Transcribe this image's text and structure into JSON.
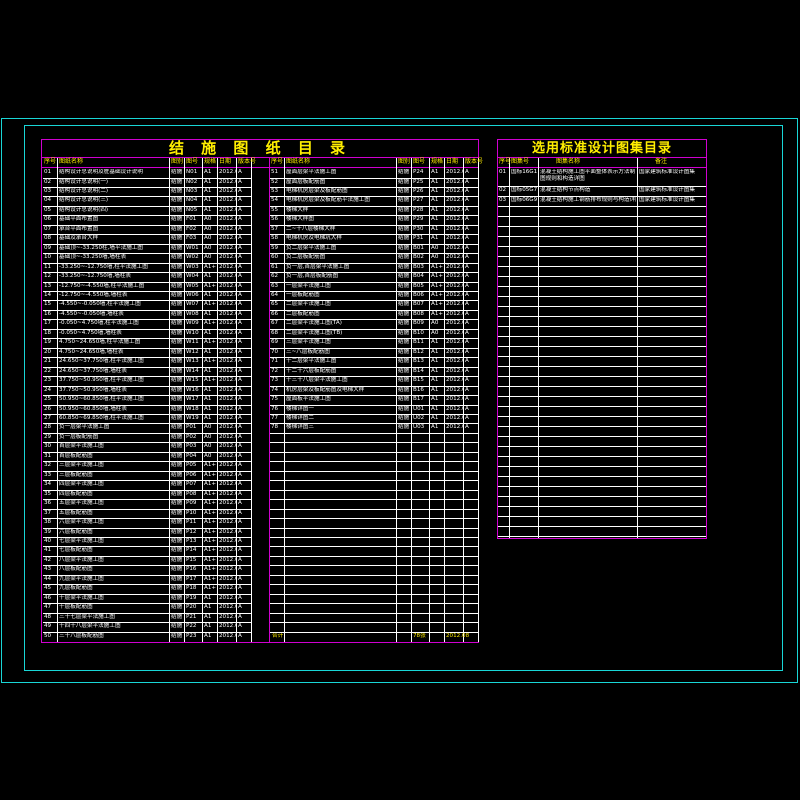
{
  "left_table": {
    "title": "结 施 图 纸 目 录",
    "headers": [
      "序号",
      "图纸名称",
      "图别",
      "图号",
      "规格",
      "日期",
      "版本号"
    ],
    "col2_headers": [
      "序号",
      "图纸名称",
      "图别",
      "图号",
      "规格",
      "日期",
      "版本号"
    ],
    "rows_a": [
      [
        "01",
        "结构设计总说明及桩基础设计说明",
        "结施",
        "N01",
        "A1",
        "2012.08",
        "A"
      ],
      [
        "02",
        "结构设计总说明(一)",
        "结施",
        "N02",
        "A1",
        "2012.08",
        "A"
      ],
      [
        "03",
        "结构设计总说明(二)",
        "结施",
        "N03",
        "A1",
        "2012.08",
        "A"
      ],
      [
        "04",
        "结构设计总说明(三)",
        "结施",
        "N04",
        "A1",
        "2012.08",
        "A"
      ],
      [
        "05",
        "结构设计总说明(四)",
        "结施",
        "N05",
        "A1",
        "2012.08",
        "A"
      ],
      [
        "06",
        "基础平面布置图",
        "结施",
        "F01",
        "A0",
        "2012.08",
        "A"
      ],
      [
        "07",
        "承台平面布置图",
        "结施",
        "F02",
        "A0",
        "2012.08",
        "A"
      ],
      [
        "08",
        "基础及承台大样",
        "结施",
        "F03",
        "A0",
        "2012.08",
        "A"
      ],
      [
        "09",
        "基础顶~-33.250柱,墙平法施工图",
        "结施",
        "W01",
        "A0",
        "2012.08",
        "A"
      ],
      [
        "10",
        "基础顶~-33.250墙,墙柱表",
        "结施",
        "W02",
        "A0",
        "2012.08",
        "A"
      ],
      [
        "11",
        "-33.250~-12.750墙,柱平法施工图",
        "结施",
        "W03",
        "A1+",
        "2012.08",
        "A"
      ],
      [
        "12",
        "-33.250~-12.750墙,墙柱表",
        "结施",
        "W04",
        "A1",
        "2012.08",
        "A"
      ],
      [
        "13",
        "-12.750~-4.550墙,柱平法施工图",
        "结施",
        "W05",
        "A1+",
        "2012.08",
        "A"
      ],
      [
        "14",
        "-12.750~-4.550墙,墙柱表",
        "结施",
        "W06",
        "A1",
        "2012.08",
        "A"
      ],
      [
        "15",
        "-4.550~-0.050墙,柱平法施工图",
        "结施",
        "W07",
        "A1+",
        "2012.08",
        "A"
      ],
      [
        "16",
        "-4.550~-0.050墙,墙柱表",
        "结施",
        "W08",
        "A1",
        "2012.08",
        "A"
      ],
      [
        "17",
        "-0.050~4.750墙,柱平法施工图",
        "结施",
        "W09",
        "A1+",
        "2012.08",
        "A"
      ],
      [
        "18",
        "-0.050~4.750墙,墙柱表",
        "结施",
        "W10",
        "A1",
        "2012.08",
        "A"
      ],
      [
        "19",
        "4.750~24.650墙,柱平法施工图",
        "结施",
        "W11",
        "A1+",
        "2012.08",
        "A"
      ],
      [
        "20",
        "4.750~24.650墙,墙柱表",
        "结施",
        "W12",
        "A1",
        "2012.08",
        "A"
      ],
      [
        "21",
        "24.650~37.750墙,柱平法施工图",
        "结施",
        "W13",
        "A1+",
        "2012.08",
        "A"
      ],
      [
        "22",
        "24.650~37.750墙,墙柱表",
        "结施",
        "W14",
        "A1",
        "2012.08",
        "A"
      ],
      [
        "23",
        "37.750~50.950墙,柱平法施工图",
        "结施",
        "W15",
        "A1+",
        "2012.08",
        "A"
      ],
      [
        "24",
        "37.750~50.950墙,墙柱表",
        "结施",
        "W16",
        "A1",
        "2012.08",
        "A"
      ],
      [
        "25",
        "50.950~60.850墙,柱平法施工图",
        "结施",
        "W17",
        "A1",
        "2012.08",
        "A"
      ],
      [
        "26",
        "50.950~60.850墙,墙柱表",
        "结施",
        "W18",
        "A1",
        "2012.08",
        "A"
      ],
      [
        "27",
        "60.850~69.850墙,柱平法施工图",
        "结施",
        "W19",
        "A1",
        "2012.08",
        "A"
      ],
      [
        "28",
        "负一层梁平法施工图",
        "结施",
        "P01",
        "A0",
        "2012.08",
        "A"
      ],
      [
        "29",
        "负一层板配筋图",
        "结施",
        "P02",
        "A0",
        "2012.08",
        "A"
      ],
      [
        "30",
        "首层梁平法施工图",
        "结施",
        "P03",
        "A0",
        "2012.08",
        "A"
      ],
      [
        "31",
        "首层板配筋图",
        "结施",
        "P04",
        "A0",
        "2012.08",
        "A"
      ],
      [
        "32",
        "三层梁平法施工图",
        "结施",
        "P05",
        "A1+",
        "2012.08",
        "A"
      ],
      [
        "33",
        "三层板配筋图",
        "结施",
        "P06",
        "A1+",
        "2012.08",
        "A"
      ],
      [
        "34",
        "四层梁平法施工图",
        "结施",
        "P07",
        "A1+",
        "2012.08",
        "A"
      ],
      [
        "35",
        "四层板配筋图",
        "结施",
        "P08",
        "A1+",
        "2012.08",
        "A"
      ],
      [
        "36",
        "五层梁平法施工图",
        "结施",
        "P09",
        "A1+",
        "2012.08",
        "A"
      ],
      [
        "37",
        "五层板配筋图",
        "结施",
        "P10",
        "A1+",
        "2012.08",
        "A"
      ],
      [
        "38",
        "六层梁平法施工图",
        "结施",
        "P11",
        "A1+",
        "2012.08",
        "A"
      ],
      [
        "39",
        "六层板配筋图",
        "结施",
        "P12",
        "A1+",
        "2012.08",
        "A"
      ],
      [
        "40",
        "七层梁平法施工图",
        "结施",
        "P13",
        "A1+",
        "2012.08",
        "A"
      ],
      [
        "41",
        "七层板配筋图",
        "结施",
        "P14",
        "A1+",
        "2012.08",
        "A"
      ],
      [
        "42",
        "八层梁平法施工图",
        "结施",
        "P15",
        "A1+",
        "2012.08",
        "A"
      ],
      [
        "43",
        "八层板配筋图",
        "结施",
        "P16",
        "A1+",
        "2012.08",
        "A"
      ],
      [
        "44",
        "九层梁平法施工图",
        "结施",
        "P17",
        "A1+",
        "2012.08",
        "A"
      ],
      [
        "45",
        "九层板配筋图",
        "结施",
        "P18",
        "A1+",
        "2012.08",
        "A"
      ],
      [
        "46",
        "十层梁平法施工图",
        "结施",
        "P19",
        "A1",
        "2012.08",
        "A"
      ],
      [
        "47",
        "十层板配筋图",
        "结施",
        "P20",
        "A1",
        "2012.08",
        "A"
      ],
      [
        "48",
        "三十七层梁平法施工图",
        "结施",
        "P21",
        "A1",
        "2012.08",
        "A"
      ],
      [
        "49",
        "十四十八层梁平法施工图",
        "结施",
        "P22",
        "A1",
        "2012.08",
        "A"
      ],
      [
        "50",
        "三十八层板配筋图",
        "结施",
        "P23",
        "A1",
        "2012.08",
        "A"
      ]
    ],
    "rows_b": [
      [
        "51",
        "屋面层梁平法施工图",
        "结施",
        "P24",
        "A1",
        "2012.08",
        "A"
      ],
      [
        "52",
        "屋面层板配筋图",
        "结施",
        "P25",
        "A1",
        "2012.08",
        "A"
      ],
      [
        "53",
        "电梯机房层梁及板配筋图",
        "结施",
        "P26",
        "A1",
        "2012.08",
        "A"
      ],
      [
        "54",
        "电梯机房层梁及板配筋平法施工图",
        "结施",
        "P27",
        "A1",
        "2012.08",
        "A"
      ],
      [
        "55",
        "楼梯大样",
        "结施",
        "P28",
        "A1",
        "2012.08",
        "A"
      ],
      [
        "56",
        "楼梯大样图",
        "结施",
        "P29",
        "A1",
        "2012.08",
        "A"
      ],
      [
        "57",
        "二~十八层楼梯大样",
        "结施",
        "P30",
        "A1",
        "2012.08",
        "A"
      ],
      [
        "58",
        "电梯机房及电梯坑大样",
        "结施",
        "P31",
        "A1",
        "2012.08",
        "A"
      ],
      [
        "59",
        "负二层梁平法施工图",
        "结施",
        "B01",
        "A0",
        "2012.08",
        "A"
      ],
      [
        "60",
        "负二层板配筋图",
        "结施",
        "B02",
        "A0",
        "2012.08",
        "A"
      ],
      [
        "61",
        "负一层,首层梁平法施工图",
        "结施",
        "B03",
        "A1+",
        "2012.08",
        "A"
      ],
      [
        "62",
        "负一层,首层板配筋图",
        "结施",
        "B04",
        "A1+",
        "2012.08",
        "A"
      ],
      [
        "63",
        "一层梁平法施工图",
        "结施",
        "B05",
        "A1+",
        "2012.08",
        "A"
      ],
      [
        "64",
        "一层板配筋图",
        "结施",
        "B06",
        "A1+",
        "2012.08",
        "A"
      ],
      [
        "65",
        "二层梁平法施工图",
        "结施",
        "B07",
        "A1+",
        "2012.08",
        "A"
      ],
      [
        "66",
        "二层板配筋图",
        "结施",
        "B08",
        "A1+",
        "2012.08",
        "A"
      ],
      [
        "67",
        "二层梁平法施工图(TA)",
        "结施",
        "B09",
        "A0",
        "2012.08",
        "A"
      ],
      [
        "68",
        "二层梁平法施工图(TB)",
        "结施",
        "B10",
        "A0",
        "2012.08",
        "A"
      ],
      [
        "69",
        "三层梁平法施工图",
        "结施",
        "B11",
        "A1",
        "2012.08",
        "A"
      ],
      [
        "70",
        "三~八层板配筋图",
        "结施",
        "B12",
        "A1",
        "2012.08",
        "A"
      ],
      [
        "71",
        "十二层梁平法施工图",
        "结施",
        "B13",
        "A1",
        "2012.08",
        "A"
      ],
      [
        "72",
        "十二十六层板配筋图",
        "结施",
        "B14",
        "A1",
        "2012.08",
        "A"
      ],
      [
        "73",
        "十三十八层梁平法施工图",
        "结施",
        "B15",
        "A1",
        "2012.08",
        "A"
      ],
      [
        "74",
        "机房层梁及板配筋图及电梯大样",
        "结施",
        "B16",
        "A1",
        "2012.08",
        "A"
      ],
      [
        "75",
        "屋面板平法施工图",
        "结施",
        "B17",
        "A1",
        "2012.08",
        "A"
      ],
      [
        "76",
        "楼梯详图一",
        "结施",
        "U01",
        "A1",
        "2012.08",
        "A"
      ],
      [
        "77",
        "楼梯详图二",
        "结施",
        "U02",
        "A1",
        "2012.08",
        "A"
      ],
      [
        "78",
        "楼梯详图三",
        "结施",
        "U03",
        "A1",
        "2012.08",
        "A"
      ]
    ],
    "footer": {
      "label": "合计",
      "count": "78张",
      "date": "2012.08"
    }
  },
  "right_table": {
    "title": "选用标准设计图集目录",
    "headers": [
      "序号",
      "图集号",
      "图集名称",
      "备注"
    ],
    "rows": [
      [
        "01",
        "国标16G101-1",
        "混凝土结构施工图平面整体表示方法制图规则和构造详图",
        "国家建筑标准设计图集"
      ],
      [
        "02",
        "国标05G701(四)",
        "混凝土结构节点构造",
        "国家建筑标准设计图集"
      ],
      [
        "03",
        "国标06G901-1",
        "混凝土结构施工钢筋排布规则与构造详图",
        "国家建筑标准设计图集"
      ]
    ]
  },
  "colors": {
    "frame": "#19d6d6",
    "table_border": "#d000d0",
    "header_text": "#ffee00",
    "body_text": "#ffffff"
  }
}
